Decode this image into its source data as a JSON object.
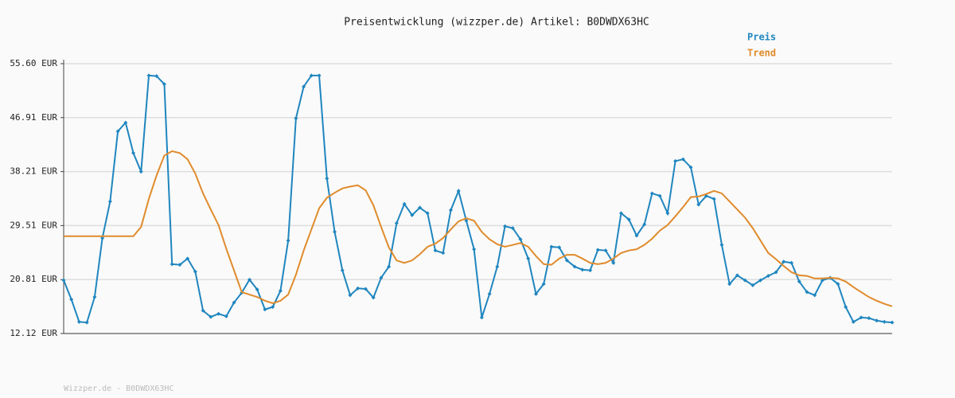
{
  "chart_data": {
    "type": "line",
    "title": "Preisentwicklung (wizzper.de) Artikel: B0DWDX63HC",
    "footer": "Wizzper.de - B0DWDX63HC",
    "ylim": [
      12.12,
      55.6
    ],
    "yticks": [
      {
        "value": 12.12,
        "label": "12.12 EUR"
      },
      {
        "value": 20.81,
        "label": "20.81 EUR"
      },
      {
        "value": 29.51,
        "label": "29.51 EUR"
      },
      {
        "value": 38.21,
        "label": "38.21 EUR"
      },
      {
        "value": 46.91,
        "label": "46.91 EUR"
      },
      {
        "value": 55.6,
        "label": "55.60 EUR"
      }
    ],
    "grid": true,
    "legend": "top-right",
    "series": [
      {
        "name": "Preis",
        "color": "#1f86bf",
        "markers": true,
        "values": [
          20.71,
          17.6,
          14.0,
          13.9,
          18.0,
          27.5,
          33.4,
          44.7,
          46.1,
          41.2,
          38.2,
          53.7,
          53.6,
          52.3,
          23.3,
          23.2,
          24.2,
          22.1,
          15.8,
          14.8,
          15.3,
          14.9,
          17.1,
          18.7,
          20.8,
          19.2,
          16.0,
          16.4,
          19.0,
          27.1,
          46.8,
          51.9,
          53.7,
          53.7,
          37.1,
          28.5,
          22.3,
          18.3,
          19.4,
          19.3,
          17.9,
          21.1,
          22.9,
          29.9,
          33.0,
          31.2,
          32.4,
          31.5,
          25.5,
          25.1,
          32.0,
          35.1,
          30.3,
          25.7,
          14.7,
          18.5,
          22.9,
          29.4,
          29.1,
          27.3,
          24.2,
          18.5,
          20.1,
          26.1,
          26.0,
          23.9,
          22.9,
          22.4,
          22.3,
          25.6,
          25.5,
          23.5,
          31.5,
          30.5,
          27.9,
          29.7,
          34.7,
          34.3,
          31.5,
          39.9,
          40.2,
          38.9,
          32.9,
          34.3,
          33.8,
          26.4,
          20.1,
          21.5,
          20.7,
          19.9,
          20.7,
          21.4,
          22.0,
          23.7,
          23.5,
          20.5,
          18.8,
          18.3,
          20.7,
          21.1,
          20.1,
          16.4,
          14.0,
          14.7,
          14.6,
          14.2,
          14.0,
          13.9
        ]
      },
      {
        "name": "Trend",
        "color": "#e08b2c",
        "markers": false,
        "values": [
          27.8,
          27.8,
          27.8,
          27.8,
          27.8,
          27.8,
          27.8,
          27.8,
          27.8,
          27.8,
          29.3,
          33.8,
          37.6,
          40.8,
          41.5,
          41.2,
          40.2,
          37.9,
          34.7,
          32.1,
          29.6,
          25.8,
          22.3,
          18.8,
          18.4,
          18.0,
          17.4,
          17.0,
          17.4,
          18.4,
          21.6,
          25.5,
          28.9,
          32.3,
          34.0,
          34.8,
          35.5,
          35.8,
          36.0,
          35.2,
          32.8,
          29.3,
          26.0,
          23.9,
          23.5,
          23.9,
          24.9,
          26.1,
          26.6,
          27.5,
          28.9,
          30.2,
          30.7,
          30.3,
          28.5,
          27.3,
          26.5,
          26.1,
          26.4,
          26.7,
          26.1,
          24.6,
          23.3,
          23.2,
          24.2,
          24.8,
          24.8,
          24.2,
          23.5,
          23.3,
          23.5,
          24.2,
          25.1,
          25.5,
          25.7,
          26.4,
          27.4,
          28.7,
          29.6,
          31.0,
          32.5,
          34.1,
          34.2,
          34.6,
          35.1,
          34.7,
          33.4,
          32.1,
          30.8,
          29.1,
          27.1,
          25.1,
          24.1,
          23.0,
          22.0,
          21.5,
          21.4,
          21.0,
          21.0,
          21.1,
          21.0,
          20.5,
          19.6,
          18.8,
          18.0,
          17.4,
          16.9,
          16.5
        ]
      }
    ]
  }
}
